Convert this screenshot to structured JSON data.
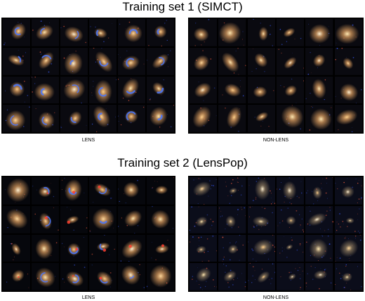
{
  "figure": {
    "set1": {
      "title": "Training set 1 (SIMCT)",
      "lens_label": "LENS",
      "nonlens_label": "NON-LENS"
    },
    "set2": {
      "title": "Training set 2 (LensPop)",
      "lens_label": "LENS",
      "nonlens_label": "NON-LENS"
    }
  },
  "colors": {
    "background": "#ffffff",
    "panel": "#000000",
    "galaxy_core": "#ffe7b0",
    "galaxy_halo": "#c08a55",
    "lens_arc": "#4a78ff",
    "red_source": "#ff4030",
    "noise": "#0b0d1a"
  },
  "icons": [
    "galaxy-cutout"
  ]
}
